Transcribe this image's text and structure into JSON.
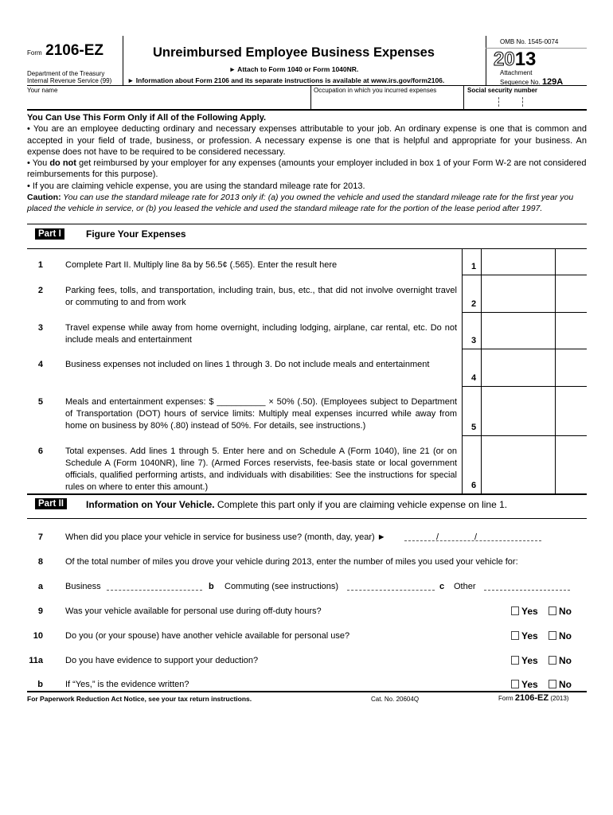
{
  "header": {
    "form_prefix": "Form",
    "form_number": "2106-EZ",
    "dept1": "Department of the Treasury",
    "dept2": "Internal Revenue Service  (99)",
    "title": "Unreimbursed Employee Business Expenses",
    "attach": "► Attach to Form 1040 or Form 1040NR.",
    "info": "► Information about Form 2106 and its separate instructions is available at www.irs.gov/form2106.",
    "omb": "OMB No. 1545-0074",
    "year_outline": "20",
    "year_bold": "13",
    "attachment": "Attachment",
    "sequence": "Sequence No.",
    "sequence_no": "129A"
  },
  "fields": {
    "name": "Your name",
    "occupation": "Occupation in which you incurred expenses",
    "ssn": "Social security number"
  },
  "intro": {
    "heading": "You Can Use This Form Only if All of the Following Apply.",
    "p1": "• You are an employee deducting ordinary and necessary expenses attributable to your job. An ordinary expense is one that is common and accepted in your field of trade, business, or profession. A necessary expense is one that is helpful and appropriate for your business. An expense does not have to be required to be considered necessary.",
    "p2a": "• You ",
    "p2b": "do not",
    "p2c": " get reimbursed by your employer for any expenses (amounts your employer included in box 1 of your Form W-2 are not considered reimbursements for this purpose).",
    "p3": "• If you are claiming vehicle expense, you are using the standard mileage rate for 2013.",
    "caution_label": "Caution:",
    "caution": " You can use the standard mileage rate for 2013 only if: (a) you owned the vehicle and used the standard mileage rate for the first year you placed the vehicle in service, or (b) you leased the vehicle and used the standard mileage rate for the portion of the lease period after 1997."
  },
  "part1": {
    "label": "Part I",
    "title": "Figure Your Expenses",
    "lines": [
      {
        "n": "1",
        "text": "Complete Part II. Multiply line 8a by 56.5¢ (.565). Enter the result here"
      },
      {
        "n": "2",
        "text": "Parking fees, tolls, and transportation, including train, bus, etc., that did not involve overnight travel or commuting to and from work"
      },
      {
        "n": "3",
        "text": "Travel expense while away from home overnight, including lodging, airplane, car rental, etc. Do not include meals and entertainment"
      },
      {
        "n": "4",
        "text": "Business expenses not included on lines 1 through 3. Do not include meals and entertainment"
      },
      {
        "n": "5",
        "text": "Meals and entertainment expenses:  $ __________  × 50% (.50). (Employees subject to Department of Transportation (DOT) hours of service limits: Multiply meal expenses incurred while away from home on business by 80% (.80) instead of 50%. For details, see instructions.)"
      },
      {
        "n": "6",
        "text": "Total expenses. Add lines 1 through 5. Enter here and on Schedule A (Form 1040), line 21 (or on Schedule A (Form 1040NR), line 7). (Armed Forces reservists, fee-basis state or local government officials, qualified performing artists, and individuals with disabilities: See the instructions for special rules on where to enter this amount.)"
      }
    ]
  },
  "part2": {
    "label": "Part II",
    "title": "Information on Your Vehicle.",
    "subtitle": "Complete this part only if you are claiming vehicle expense on line 1.",
    "l7n": "7",
    "l7": "When did you place your vehicle in service for business use? (month, day, year) ►",
    "slash": "/",
    "l8n": "8",
    "l8": "Of the total number of miles you drove your vehicle during 2013, enter the number of miles you used your vehicle for:",
    "an": "a",
    "a": "Business",
    "bn": "b",
    "b": "Commuting (see instructions)",
    "cn": "c",
    "c": "Other",
    "yes": "Yes",
    "no": "No",
    "questions": [
      {
        "n": "9",
        "text": "Was your vehicle available for personal use during off-duty hours?"
      },
      {
        "n": "10",
        "text": "Do you (or your spouse) have another vehicle available for personal use?"
      },
      {
        "n": "11a",
        "text": "Do you have evidence to support your deduction?"
      },
      {
        "n": "b",
        "text": "If “Yes,” is the evidence written?"
      }
    ]
  },
  "footer": {
    "notice": "For Paperwork Reduction Act Notice, see your tax return instructions.",
    "cat": "Cat. No. 20604Q",
    "form_prefix": "Form",
    "form": "2106-EZ",
    "year": "(2013)"
  }
}
